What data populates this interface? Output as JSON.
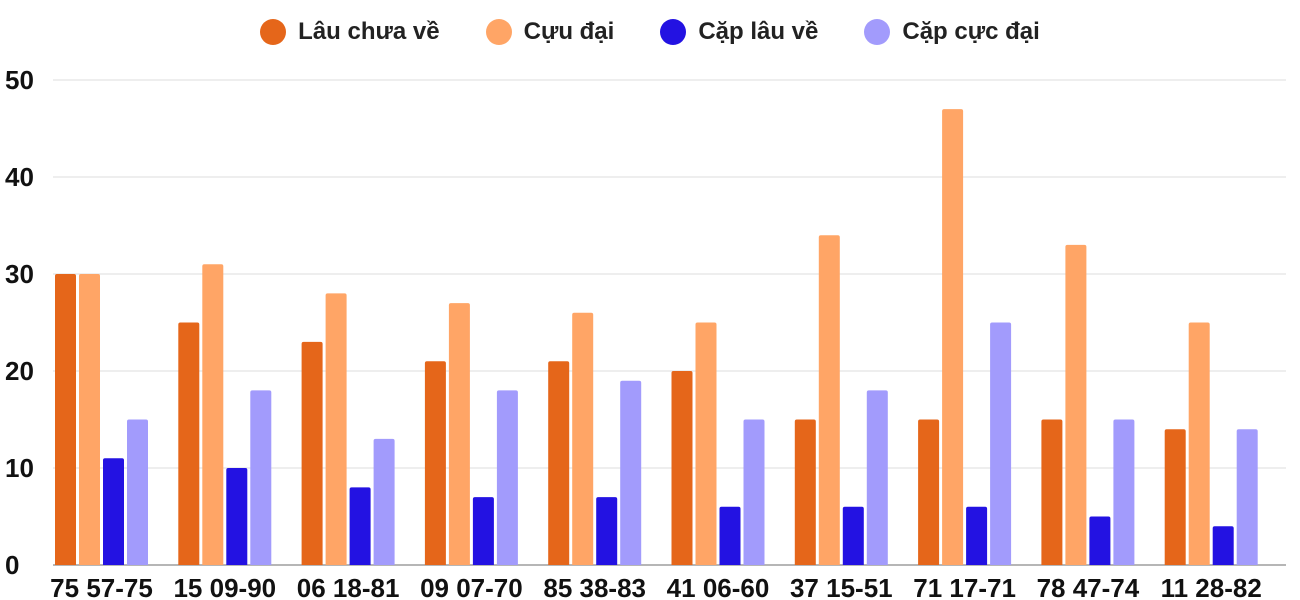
{
  "chart_data": {
    "type": "bar",
    "categories": [
      "75 57-75",
      "15 09-90",
      "06 18-81",
      "09 07-70",
      "85 38-83",
      "41 06-60",
      "37 15-51",
      "71 17-71",
      "78 47-74",
      "11 28-82"
    ],
    "series": [
      {
        "name": "Lâu chưa về",
        "color": "#e5661a",
        "values": [
          30,
          25,
          23,
          21,
          21,
          20,
          15,
          15,
          15,
          14
        ]
      },
      {
        "name": "Cựu đại",
        "color": "#ffa566",
        "values": [
          30,
          31,
          28,
          27,
          26,
          25,
          34,
          47,
          33,
          25
        ]
      },
      {
        "name": "Cặp lâu về",
        "color": "#2312e2",
        "values": [
          11,
          10,
          8,
          7,
          7,
          6,
          6,
          6,
          5,
          4
        ]
      },
      {
        "name": "Cặp cực đại",
        "color": "#a29bfc",
        "values": [
          15,
          18,
          13,
          18,
          19,
          15,
          18,
          25,
          15,
          14
        ]
      }
    ],
    "ylim": [
      0,
      50
    ],
    "yticks": [
      "0",
      "10",
      "20",
      "30",
      "40",
      "50"
    ],
    "grid": true,
    "legend_position": "top-center"
  }
}
